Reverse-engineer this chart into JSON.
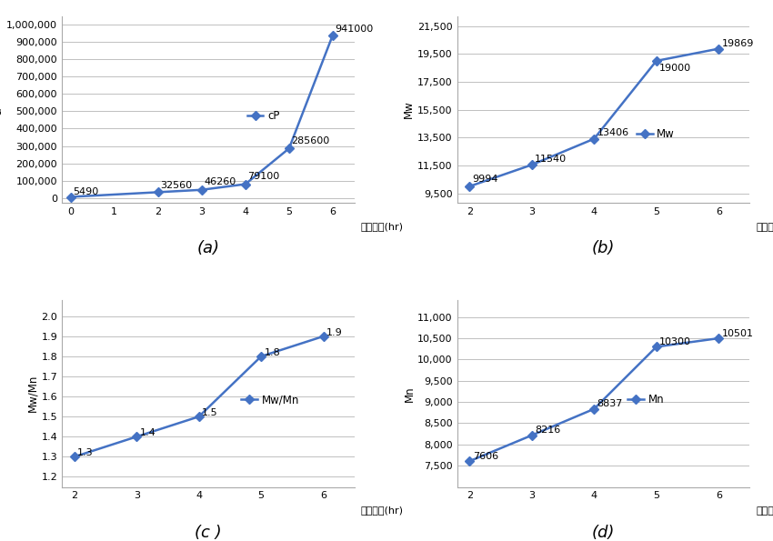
{
  "a": {
    "x": [
      0,
      2,
      3,
      4,
      5,
      6
    ],
    "y": [
      5490,
      32560,
      46260,
      79100,
      285600,
      941000
    ],
    "labels": [
      "5490",
      "32560",
      "46260",
      "79100",
      "285600",
      "941000"
    ],
    "ylabel": "cP",
    "xlabel": "가열시간(hr)",
    "legend": "cP",
    "yticks": [
      0,
      100000,
      200000,
      300000,
      400000,
      500000,
      600000,
      700000,
      800000,
      900000,
      1000000
    ],
    "xticks": [
      0,
      1,
      2,
      3,
      4,
      5,
      6
    ],
    "ylim": [
      -30000,
      1050000
    ],
    "xlim": [
      -0.2,
      6.5
    ],
    "caption": "(a)"
  },
  "b": {
    "x": [
      2,
      3,
      4,
      5,
      6
    ],
    "y": [
      9994,
      11540,
      13406,
      19000,
      19869
    ],
    "labels": [
      "9994",
      "11540",
      "13406",
      "19000",
      "19869"
    ],
    "ylabel": "Mw",
    "xlabel": "가열시간(hr)",
    "legend": "Mw",
    "yticks": [
      9500,
      11500,
      13500,
      15500,
      17500,
      19500,
      21500
    ],
    "xticks": [
      2,
      3,
      4,
      5,
      6
    ],
    "ylim": [
      8800,
      22200
    ],
    "xlim": [
      1.8,
      6.5
    ],
    "caption": "(b)"
  },
  "c": {
    "x": [
      2,
      3,
      4,
      5,
      6
    ],
    "y": [
      1.3,
      1.4,
      1.5,
      1.8,
      1.9
    ],
    "labels": [
      "1.3",
      "1.4",
      "1.5",
      "1.8",
      "1.9"
    ],
    "ylabel": "Mw/Mn",
    "xlabel": "가열시간(hr)",
    "legend": "Mw/Mn",
    "yticks": [
      1.2,
      1.3,
      1.4,
      1.5,
      1.6,
      1.7,
      1.8,
      1.9,
      2.0
    ],
    "xticks": [
      2,
      3,
      4,
      5,
      6
    ],
    "ylim": [
      1.15,
      2.08
    ],
    "xlim": [
      1.8,
      6.5
    ],
    "caption": "(c )"
  },
  "d": {
    "x": [
      2,
      3,
      4,
      5,
      6
    ],
    "y": [
      7606,
      8216,
      8837,
      10300,
      10501
    ],
    "labels": [
      "7606",
      "8216",
      "8837",
      "10300",
      "10501"
    ],
    "ylabel": "Mn",
    "xlabel": "가열시간(hr)",
    "legend": "Mn",
    "yticks": [
      7500,
      8000,
      8500,
      9000,
      9500,
      10000,
      10500,
      11000
    ],
    "xticks": [
      2,
      3,
      4,
      5,
      6
    ],
    "ylim": [
      7000,
      11400
    ],
    "xlim": [
      1.8,
      6.5
    ],
    "caption": "(d)"
  },
  "line_color": "#4472c4",
  "marker": "D",
  "markersize": 5,
  "linewidth": 1.8,
  "grid_color": "#c0c0c0",
  "font_size_label": 8.5,
  "font_size_axis": 8,
  "font_size_caption": 13,
  "font_size_legend": 8.5,
  "background_color": "#ffffff"
}
